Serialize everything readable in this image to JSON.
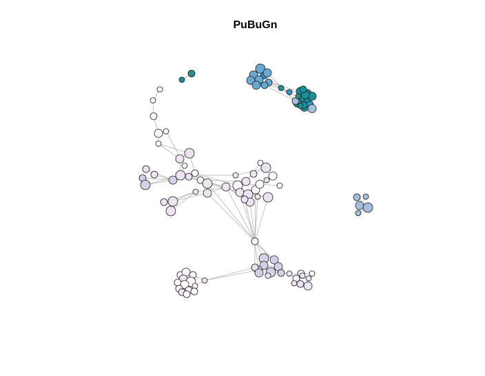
{
  "title": "PuBuGn",
  "colors": {
    "c1": "#fff7fb",
    "c2": "#ece2f0",
    "c3": "#d0d1e6",
    "c4": "#a6bddb",
    "c5": "#67a9cf",
    "c6": "#3690c0",
    "c7": "#1c9099",
    "c8": "#2b8c8c"
  }
}
